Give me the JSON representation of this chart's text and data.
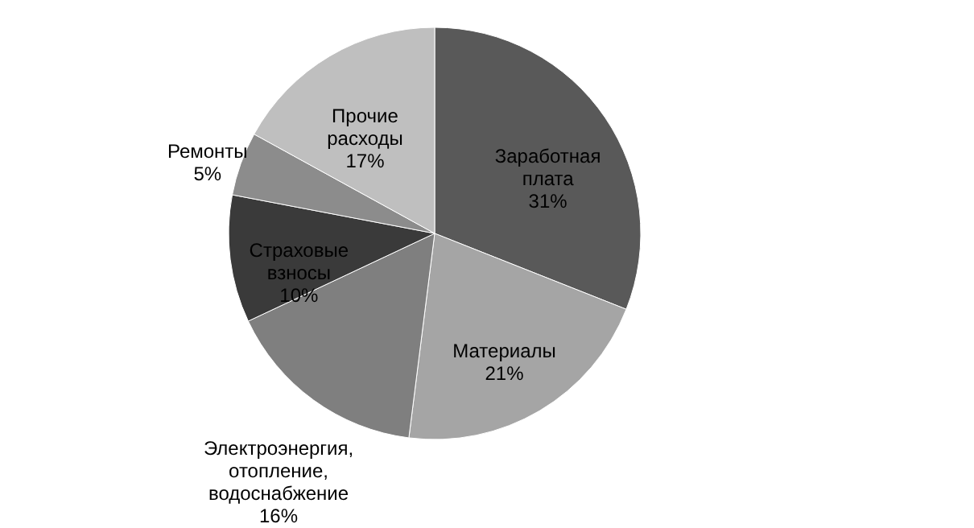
{
  "chart_data": {
    "type": "pie",
    "categories": [
      "Заработная плата",
      "Материалы",
      "Электроэнергия, отопление, водоснабжение",
      "Страховые взносы",
      "Ремонты",
      "Прочие расходы"
    ],
    "values": [
      31,
      21,
      16,
      10,
      5,
      17
    ],
    "value_labels": [
      "31%",
      "21%",
      "16%",
      "10%",
      "5%",
      "17%"
    ],
    "colors": [
      "#595959",
      "#a5a5a5",
      "#7f7f7f",
      "#3a3a3a",
      "#8c8c8c",
      "#bfbfbf"
    ],
    "legend": false
  }
}
